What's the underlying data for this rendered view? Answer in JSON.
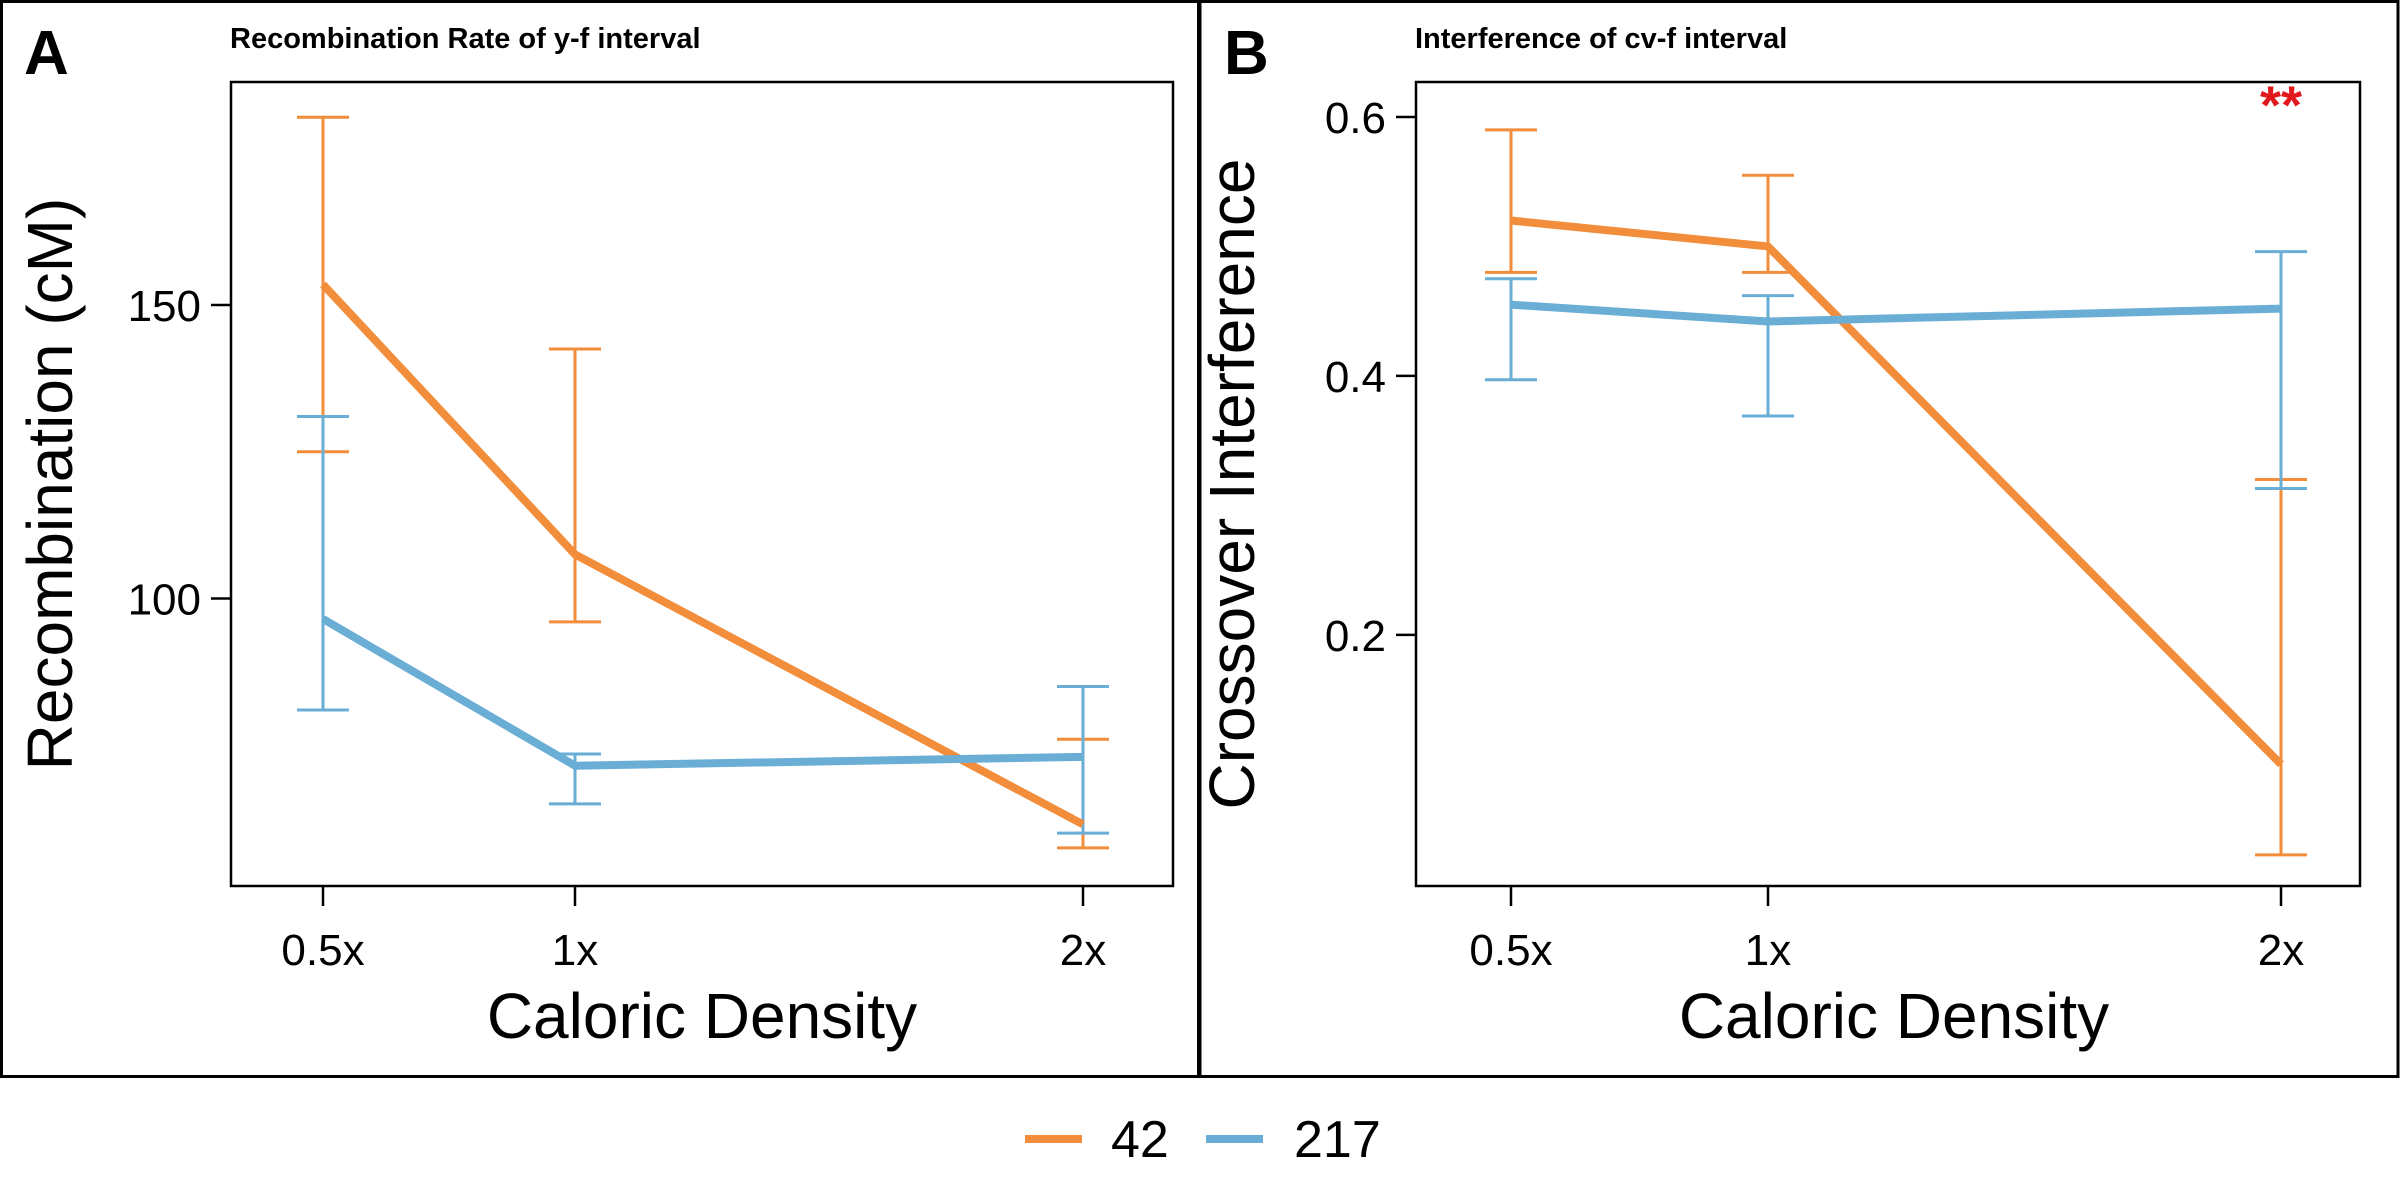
{
  "colors": {
    "series_42": "#f28e3b",
    "series_217": "#6aaed6",
    "significance": "#e0191c"
  },
  "legend": {
    "items": [
      {
        "label": "42",
        "color": "#f28e3b"
      },
      {
        "label": "217",
        "color": "#6aaed6"
      }
    ]
  },
  "chart_data": [
    {
      "panel": "A",
      "type": "line",
      "title": "Recombination Rate of y-f interval",
      "xlabel": "Caloric Density",
      "ylabel": "Recombination (cM)",
      "categories": [
        "0.5x",
        "1x",
        "2x"
      ],
      "x": [
        0.5,
        1,
        2
      ],
      "ylim": [
        51,
        188
      ],
      "yticks": [
        100,
        150
      ],
      "grid": false,
      "series": [
        {
          "name": "42",
          "color": "#f28e3b",
          "values": [
            153.5,
            107.5,
            61.5
          ],
          "err_low": [
            125,
            96,
            57.5
          ],
          "err_high": [
            182,
            142.5,
            76
          ]
        },
        {
          "name": "217",
          "color": "#6aaed6",
          "values": [
            96.5,
            71.5,
            73
          ],
          "err_low": [
            81,
            65,
            60
          ],
          "err_high": [
            131,
            73.5,
            85
          ]
        }
      ],
      "annotations": []
    },
    {
      "panel": "B",
      "type": "line",
      "title": "Interference of cv-f interval",
      "xlabel": "Caloric Density",
      "ylabel": "Crossover Interference",
      "categories": [
        "0.5x",
        "1x",
        "2x"
      ],
      "x": [
        0.5,
        1,
        2
      ],
      "ylim": [
        0.006,
        0.627
      ],
      "yticks": [
        0.2,
        0.4,
        0.6
      ],
      "grid": false,
      "series": [
        {
          "name": "42",
          "color": "#f28e3b",
          "values": [
            0.52,
            0.5,
            0.1
          ],
          "err_low": [
            0.48,
            0.48,
            0.03
          ],
          "err_high": [
            0.59,
            0.555,
            0.32
          ]
        },
        {
          "name": "217",
          "color": "#6aaed6",
          "values": [
            0.455,
            0.442,
            0.452
          ],
          "err_low": [
            0.397,
            0.369,
            0.313
          ],
          "err_high": [
            0.475,
            0.462,
            0.496
          ]
        }
      ],
      "annotations": [
        {
          "text": "**",
          "x": 2,
          "y": 0.615
        }
      ]
    }
  ]
}
